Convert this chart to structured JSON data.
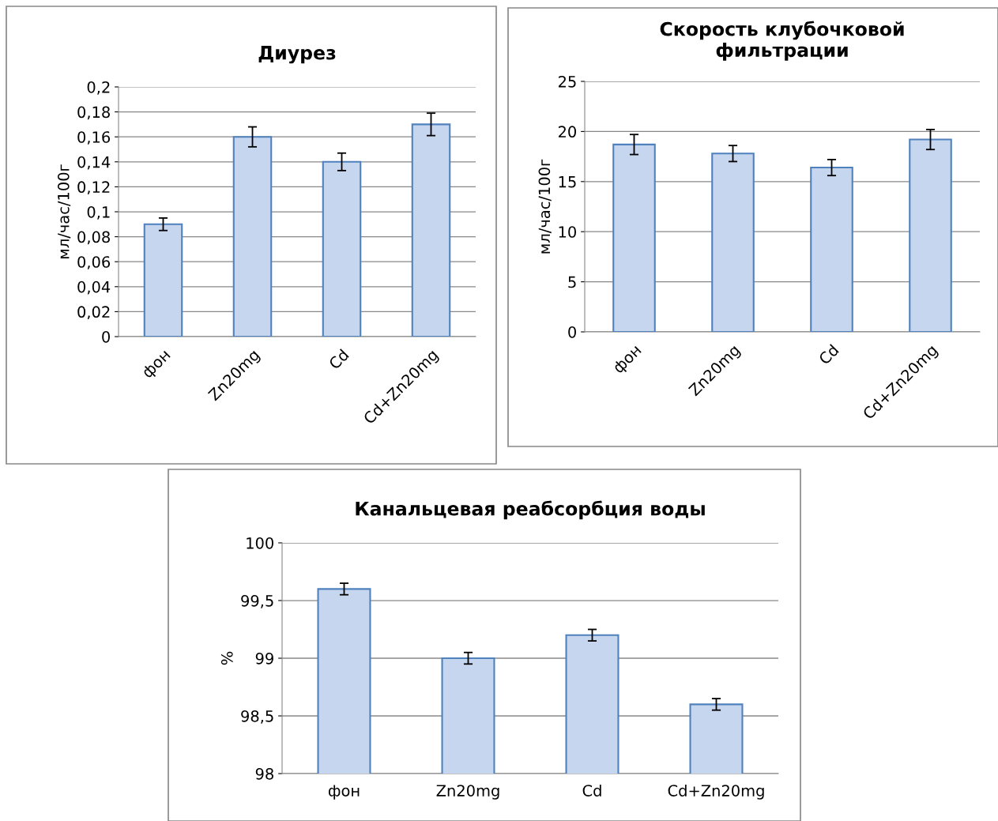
{
  "chart_data": [
    {
      "type": "bar",
      "title": "Диурез",
      "ylabel": "мл/час/100г",
      "categories": [
        "фон",
        "Zn20mg",
        "Cd",
        "Cd+Zn20mg"
      ],
      "values": [
        0.09,
        0.16,
        0.14,
        0.17
      ],
      "errors": [
        0.005,
        0.008,
        0.007,
        0.009
      ],
      "color": "#c6d6ee",
      "ylim": [
        0,
        0.2
      ],
      "yticks": [
        0,
        {
          "value": 0.02,
          "label": "0,02"
        },
        {
          "value": 0.04,
          "label": "0,04"
        },
        {
          "value": 0.06,
          "label": "0,06"
        },
        {
          "value": 0.08,
          "label": "0,08"
        },
        {
          "value": 0.1,
          "label": "0,1"
        },
        {
          "value": 0.12,
          "label": "0,12"
        },
        {
          "value": 0.14,
          "label": "0,14"
        },
        {
          "value": 0.16,
          "label": "0,16"
        },
        {
          "value": 0.18,
          "label": "0,18"
        },
        {
          "value": 0.2,
          "label": "0,2"
        }
      ],
      "grid": "y",
      "legend": false
    },
    {
      "type": "bar",
      "title": "Скорость клубочковой фильтрации",
      "ylabel": "мл/час/100г",
      "categories": [
        "фон",
        "Zn20mg",
        "Cd",
        "Cd+Zn20mg"
      ],
      "values": [
        18.7,
        17.8,
        16.4,
        19.2
      ],
      "errors": [
        1.0,
        0.8,
        0.8,
        1.0
      ],
      "color": "#c6d6ee",
      "ylim": [
        0,
        25
      ],
      "yticks": [
        0,
        5,
        10,
        15,
        20,
        25
      ],
      "grid": "y",
      "legend": false
    },
    {
      "type": "bar",
      "title": "Канальцевая реабсорбция воды",
      "ylabel": "%",
      "categories": [
        "фон",
        "Zn20mg",
        "Cd",
        "Cd+Zn20mg"
      ],
      "values": [
        99.6,
        99.0,
        99.2,
        98.6
      ],
      "errors": [
        0.05,
        0.05,
        0.05,
        0.05
      ],
      "color": "#c6d6ee",
      "ylim": [
        98,
        100
      ],
      "yticks": [
        98,
        {
          "value": 98.5,
          "label": "98,5"
        },
        99,
        {
          "value": 99.5,
          "label": "99,5"
        },
        100
      ],
      "grid": "y",
      "legend": false
    }
  ]
}
